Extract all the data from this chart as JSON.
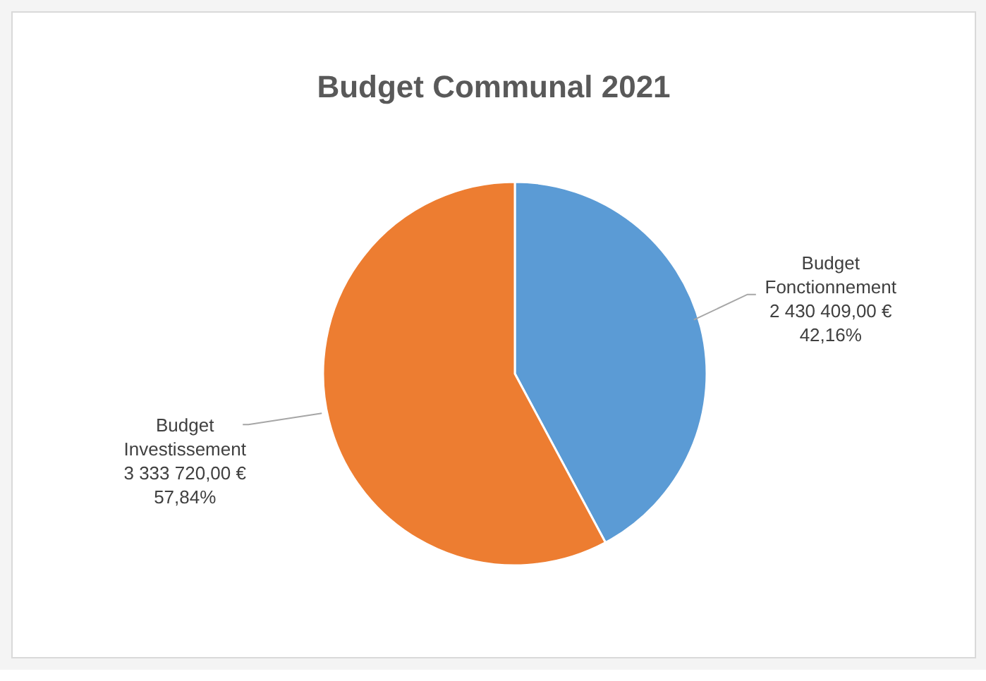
{
  "chart_data": {
    "type": "pie",
    "title": "Budget Communal 2021",
    "categories": [
      "Budget Fonctionnement",
      "Budget Investissement"
    ],
    "values": [
      2430409.0,
      3333720.0
    ],
    "colors": [
      "#5b9bd5",
      "#ed7d31"
    ],
    "value_labels": [
      "2 430 409,00 €\n42,16%",
      "3 333 720,00 €\n57,84%"
    ],
    "legend": false
  }
}
